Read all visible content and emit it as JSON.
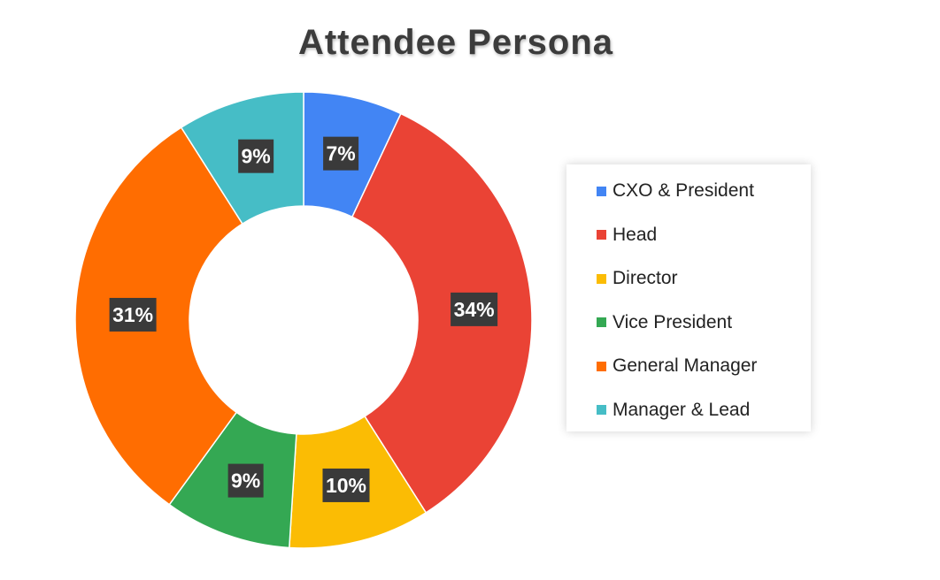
{
  "chart_data": {
    "type": "pie",
    "variant": "donut",
    "title": "Attendee Persona",
    "categories": [
      "CXO & President",
      "Head",
      "Director",
      "Vice President",
      "General Manager",
      "Manager & Lead"
    ],
    "values": [
      7,
      34,
      10,
      9,
      31,
      9
    ],
    "data_labels": [
      "7%",
      "34%",
      "10%",
      "9%",
      "31%",
      "9%"
    ],
    "colors": [
      "#4285F4",
      "#EA4335",
      "#FBBC04",
      "#34A853",
      "#FF6D01",
      "#46BDC6"
    ],
    "legend_position": "right",
    "start_angle": "top",
    "direction": "clockwise"
  }
}
